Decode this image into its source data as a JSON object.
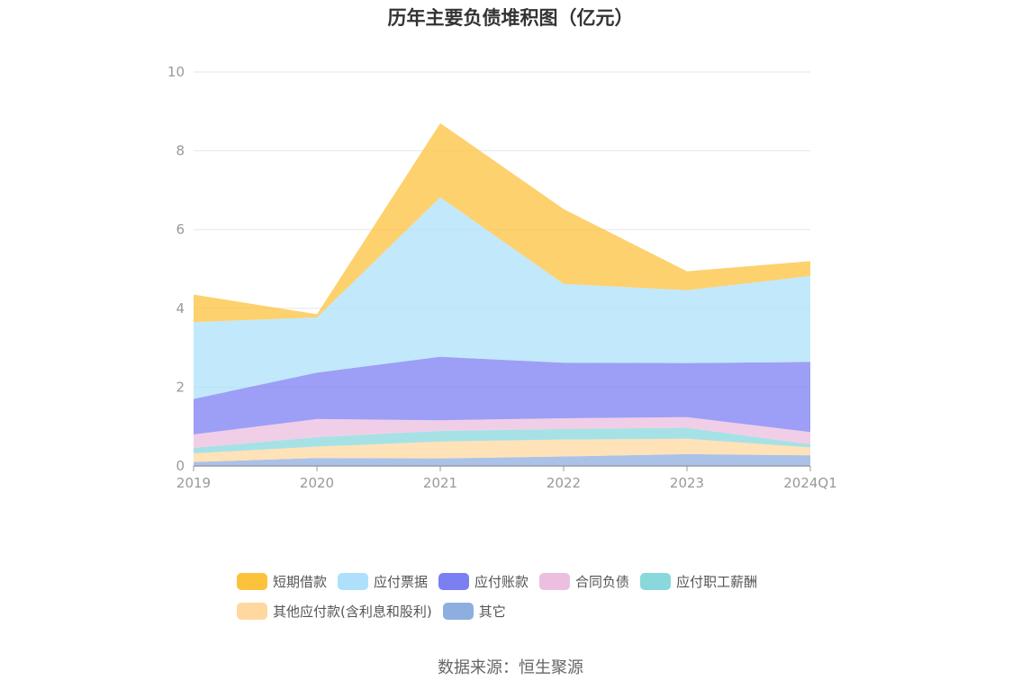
{
  "chart_data": {
    "type": "area",
    "stacked": true,
    "title": "历年主要负债堆积图（亿元）",
    "categories": [
      "2019",
      "2020",
      "2021",
      "2022",
      "2023",
      "2024Q1"
    ],
    "y_ticks": [
      "0",
      "2",
      "4",
      "6",
      "8",
      "10"
    ],
    "ylim": [
      0,
      10
    ],
    "grid": true,
    "legend_position": "bottom",
    "series": [
      {
        "name": "其它",
        "color": "#8eaee0",
        "values": [
          0.1,
          0.2,
          0.19,
          0.24,
          0.3,
          0.27
        ]
      },
      {
        "name": "其他应付款(含利息和股利)",
        "color": "#ffd8a0",
        "values": [
          0.22,
          0.29,
          0.43,
          0.43,
          0.39,
          0.2
        ]
      },
      {
        "name": "应付职工薪酬",
        "color": "#88d8dc",
        "values": [
          0.14,
          0.24,
          0.27,
          0.27,
          0.28,
          0.08
        ]
      },
      {
        "name": "合同负债",
        "color": "#ecbedf",
        "values": [
          0.34,
          0.46,
          0.27,
          0.27,
          0.27,
          0.31
        ]
      },
      {
        "name": "应付账款",
        "color": "#7b7ff2",
        "values": [
          0.9,
          1.18,
          1.61,
          1.41,
          1.37,
          1.78
        ]
      },
      {
        "name": "应付票据",
        "color": "#aee0fb",
        "values": [
          1.95,
          1.4,
          4.05,
          2.0,
          1.85,
          2.18
        ]
      },
      {
        "name": "短期借款",
        "color": "#fcc23c",
        "values": [
          0.7,
          0.08,
          1.88,
          1.9,
          0.48,
          0.38
        ]
      }
    ]
  },
  "source_text": "数据来源：恒生聚源"
}
